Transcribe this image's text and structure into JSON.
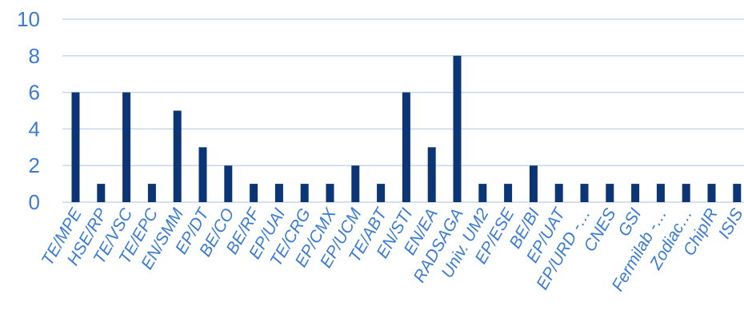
{
  "chart_data": {
    "type": "bar",
    "categories": [
      "TE/MPE",
      "HSE/RP",
      "TE/VSC",
      "TE/EPC",
      "EN/SMM",
      "EP/DT",
      "BE/CO",
      "BE/RF",
      "EP/UAI",
      "TE/CRG",
      "EP/CMX",
      "EP/UCM",
      "TE/ABT",
      "EN/STI",
      "EN/EA",
      "RADSAGA",
      "Univ. UM2",
      "EP/ESE",
      "BE/BI",
      "EP/UAT",
      "EP/URD -…",
      "CNES",
      "GSI",
      "Fermilab -…",
      "Zodiac…",
      "ChipIR",
      "ISIS"
    ],
    "values": [
      6,
      1,
      6,
      1,
      5,
      3,
      2,
      1,
      1,
      1,
      1,
      2,
      1,
      6,
      3,
      8,
      1,
      1,
      2,
      1,
      1,
      1,
      1,
      1,
      1,
      1,
      1
    ],
    "title": "",
    "xlabel": "",
    "ylabel": "",
    "ylim": [
      0,
      10
    ],
    "yticks": [
      0,
      2,
      4,
      6,
      8,
      10
    ],
    "grid": true,
    "legend": "none",
    "colors": {
      "bar": "#0b3575",
      "tick_text": "#3a7bd5",
      "grid": "#c5d7ef"
    }
  }
}
